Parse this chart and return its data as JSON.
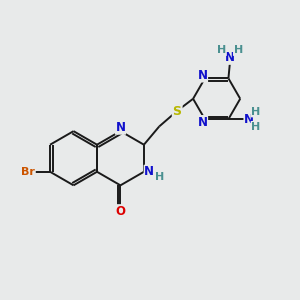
{
  "bg_color": "#e8eaea",
  "bond_color": "#1a1a1a",
  "bond_width": 1.4,
  "atoms": {
    "N_blue": "#1010cc",
    "S_yellow": "#b8b800",
    "O_red": "#dd0000",
    "Br_orange": "#cc5500",
    "NH_teal": "#4a9090",
    "NH2_N_blue": "#1010cc"
  },
  "xlim": [
    0,
    10
  ],
  "ylim": [
    0,
    10
  ]
}
